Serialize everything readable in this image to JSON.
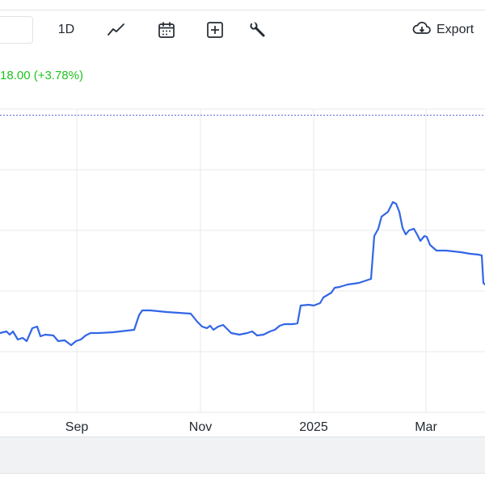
{
  "toolbar": {
    "interval_label": "1D",
    "export_label": "Export",
    "icons": [
      "line-chart-icon",
      "calendar-icon",
      "plus-box-icon",
      "wrench-icon",
      "cloud-download-icon"
    ]
  },
  "price_change_text": "18.00 (+3.78%)",
  "colors": {
    "line": "#3366e6",
    "positive": "#1ec31e",
    "grid": "#e8eaed",
    "reference": "#5b6bd6"
  },
  "chart_data": {
    "type": "line",
    "x_tick_labels": [
      "Sep",
      "Nov",
      "2025",
      "Mar"
    ],
    "grid": true,
    "series": [
      {
        "values": [
          [
            0,
            412
          ],
          [
            8,
            410
          ],
          [
            12,
            414
          ],
          [
            16,
            410
          ],
          [
            22,
            420
          ],
          [
            28,
            418
          ],
          [
            33,
            422
          ],
          [
            40,
            406
          ],
          [
            46,
            404
          ],
          [
            50,
            416
          ],
          [
            56,
            414
          ],
          [
            66,
            415
          ],
          [
            72,
            422
          ],
          [
            80,
            421
          ],
          [
            88,
            427
          ],
          [
            94,
            422
          ],
          [
            100,
            420
          ],
          [
            106,
            415
          ],
          [
            112,
            412
          ],
          [
            122,
            412
          ],
          [
            140,
            411
          ],
          [
            166,
            408
          ],
          [
            172,
            390
          ],
          [
            176,
            384
          ],
          [
            186,
            384
          ],
          [
            206,
            386
          ],
          [
            236,
            388
          ],
          [
            244,
            398
          ],
          [
            250,
            404
          ],
          [
            256,
            406
          ],
          [
            260,
            403
          ],
          [
            264,
            408
          ],
          [
            270,
            404
          ],
          [
            276,
            402
          ],
          [
            286,
            412
          ],
          [
            296,
            414
          ],
          [
            306,
            412
          ],
          [
            312,
            410
          ],
          [
            318,
            415
          ],
          [
            326,
            414
          ],
          [
            334,
            410
          ],
          [
            340,
            408
          ],
          [
            346,
            403
          ],
          [
            352,
            401
          ],
          [
            362,
            401
          ],
          [
            368,
            400
          ],
          [
            372,
            378
          ],
          [
            382,
            377
          ],
          [
            388,
            378
          ],
          [
            396,
            375
          ],
          [
            400,
            368
          ],
          [
            410,
            362
          ],
          [
            414,
            356
          ],
          [
            420,
            355
          ],
          [
            430,
            352
          ],
          [
            444,
            350
          ],
          [
            456,
            346
          ],
          [
            459,
            345
          ],
          [
            463,
            292
          ],
          [
            468,
            283
          ],
          [
            472,
            268
          ],
          [
            480,
            262
          ],
          [
            486,
            250
          ],
          [
            490,
            252
          ],
          [
            494,
            262
          ],
          [
            498,
            282
          ],
          [
            502,
            290
          ],
          [
            506,
            285
          ],
          [
            512,
            283
          ],
          [
            516,
            290
          ],
          [
            520,
            298
          ],
          [
            525,
            292
          ],
          [
            528,
            293
          ],
          [
            532,
            303
          ],
          [
            540,
            310
          ],
          [
            552,
            310
          ],
          [
            570,
            312
          ],
          [
            582,
            314
          ],
          [
            592,
            315
          ],
          [
            596,
            316
          ],
          [
            598,
            350
          ],
          [
            600,
            352
          ]
        ]
      }
    ]
  }
}
